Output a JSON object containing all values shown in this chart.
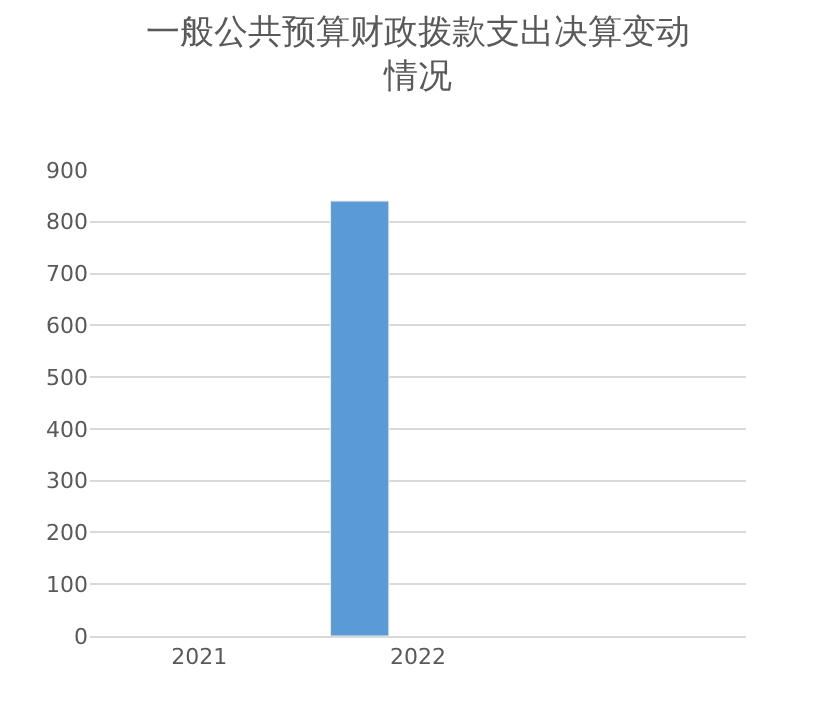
{
  "chart_data": {
    "type": "bar",
    "title": "一般公共预算财政拨款支出决算变动情况",
    "categories": [
      "2021",
      "2022",
      null
    ],
    "series": [
      {
        "color": "#5b9bd5",
        "values": [
          null,
          840,
          null
        ]
      },
      {
        "color": "#ed7d31",
        "values": [
          null,
          null,
          null
        ]
      },
      {
        "color": "#a5a5a5",
        "values": [
          null,
          null,
          null
        ]
      }
    ],
    "ylim": [
      0,
      900
    ],
    "yticks": [
      0,
      100,
      200,
      300,
      400,
      500,
      600,
      700,
      800,
      900
    ],
    "grid": "y"
  }
}
